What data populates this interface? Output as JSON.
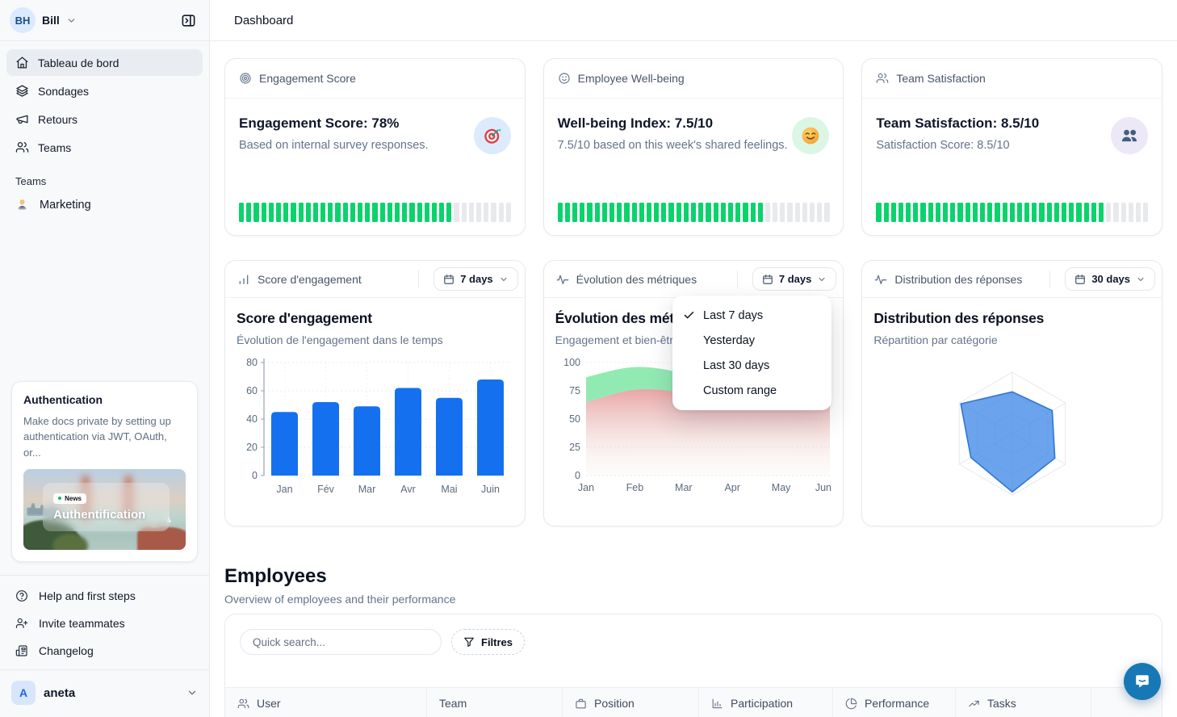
{
  "window": {
    "title": "Dashboard"
  },
  "sidebar": {
    "user": {
      "initials": "BH",
      "name": "Bill"
    },
    "nav": [
      {
        "id": "tableau-de-bord",
        "icon": "home",
        "label": "Tableau de bord",
        "active": true
      },
      {
        "id": "sondages",
        "icon": "layers",
        "label": "Sondages",
        "active": false
      },
      {
        "id": "retours",
        "icon": "megaphone",
        "label": "Retours",
        "active": false
      },
      {
        "id": "teams",
        "icon": "users",
        "label": "Teams",
        "active": false
      }
    ],
    "teams_section_label": "Teams",
    "teams": [
      {
        "icon": "technologist-emoji",
        "label": "Marketing"
      }
    ],
    "promo": {
      "title": "Authentication",
      "body": "Make docs private by setting up authentication via JWT, OAuth, or...",
      "badge": "News",
      "image_title": "Authentification"
    },
    "footer_nav": [
      {
        "id": "help",
        "icon": "help-circle",
        "label": "Help and first steps"
      },
      {
        "id": "invite",
        "icon": "user-plus",
        "label": "Invite teammates"
      },
      {
        "id": "changelog",
        "icon": "newspaper",
        "label": "Changelog"
      }
    ],
    "workspace": {
      "initial": "A",
      "name": "aneta"
    }
  },
  "stats": [
    {
      "header": "Engagement Score",
      "header_icon": "target",
      "title": "Engagement Score: 78%",
      "subtitle": "Based on internal survey responses.",
      "badge_icon": "dart-emoji",
      "badge_bg": "#dcebfb",
      "progress_pct": 78
    },
    {
      "header": "Employee Well-being",
      "header_icon": "smile",
      "title": "Well-being Index: 7.5/10",
      "subtitle": "7.5/10 based on this week's shared feelings.",
      "badge_icon": "smile-emoji",
      "badge_bg": "#dcf6e6",
      "progress_pct": 75
    },
    {
      "header": "Team Satisfaction",
      "header_icon": "users",
      "title": "Team Satisfaction: 8.5/10",
      "subtitle": "Satisfaction Score: 8.5/10",
      "badge_icon": "people-emoji",
      "badge_bg": "#ece8f8",
      "progress_pct": 85
    }
  ],
  "progress_colors": {
    "on": "#0bd36c",
    "off": "#e7e9ec"
  },
  "chart_cards": [
    {
      "header": "Score d'engagement",
      "header_icon": "bar-chart",
      "range": "7 days"
    },
    {
      "header": "Évolution des métriques",
      "header_icon": "activity",
      "range": "7 days"
    },
    {
      "header": "Distribution des réponses",
      "header_icon": "activity",
      "range": "30 days"
    }
  ],
  "chart_data": [
    {
      "type": "bar",
      "title": "Score d'engagement",
      "subtitle": "Évolution de l'engagement dans le temps",
      "categories": [
        "Jan",
        "Fév",
        "Mar",
        "Avr",
        "Mai",
        "Juin"
      ],
      "values": [
        45,
        52,
        49,
        62,
        55,
        68
      ],
      "ylim": [
        0,
        80
      ],
      "yticks": [
        0,
        20,
        40,
        60,
        80
      ],
      "color": "#1570ef",
      "grid": "dotted"
    },
    {
      "type": "area",
      "title": "Évolution des métriques",
      "subtitle": "Engagement et bien-être",
      "x": [
        "Jan",
        "Feb",
        "Mar",
        "Apr",
        "May",
        "Jun"
      ],
      "series": [
        {
          "name": "Engagement",
          "values": [
            87,
            96,
            90,
            72,
            80,
            67
          ],
          "color": "#8ce9af"
        },
        {
          "name": "Bien-être",
          "values": [
            65,
            76,
            73,
            60,
            66,
            61
          ],
          "color": "#e49696"
        }
      ],
      "ylim": [
        0,
        100
      ],
      "yticks": [
        0,
        25,
        50,
        75,
        100
      ],
      "grid": "dotted"
    },
    {
      "type": "radar",
      "title": "Distribution des réponses",
      "subtitle": "Répartition par catégorie",
      "axes": 6,
      "values_pct": [
        68,
        75,
        80,
        95,
        78,
        97
      ],
      "max": 100,
      "fill": "#4b8fe8",
      "stroke": "#2f77d4"
    }
  ],
  "range_menu": {
    "items": [
      {
        "label": "Last 7 days",
        "checked": true
      },
      {
        "label": "Yesterday",
        "checked": false
      },
      {
        "label": "Last 30 days",
        "checked": false
      },
      {
        "label": "Custom range",
        "checked": false
      }
    ]
  },
  "employees": {
    "title": "Employees",
    "subtitle": "Overview of employees and their performance",
    "search_placeholder": "Quick search...",
    "filters_label": "Filtres",
    "columns": [
      {
        "icon": "users",
        "label": "User"
      },
      {
        "icon": null,
        "label": "Team"
      },
      {
        "icon": "briefcase",
        "label": "Position"
      },
      {
        "icon": "bar-chart",
        "label": "Participation"
      },
      {
        "icon": "pie-chart",
        "label": "Performance"
      },
      {
        "icon": "trend-up",
        "label": "Tasks"
      }
    ]
  }
}
